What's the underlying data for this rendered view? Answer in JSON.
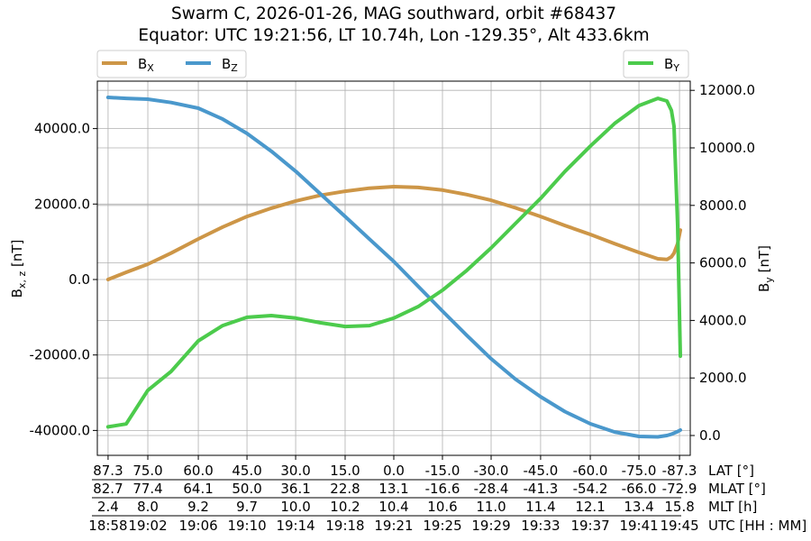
{
  "chart_data": {
    "type": "line",
    "title": "Swarm C, 2026-01-26, MAG southward, orbit #68437",
    "subtitle": "Equator: UTC 19:21:56, LT 10.74h, Lon -129.35°, Alt 433.6km",
    "ylabel_left": "B_{x,z} [nT]",
    "ylabel_right": "B_y [nT]",
    "xlim": [
      "18:57:34",
      "19:46:18"
    ],
    "ylim_left": [
      -46600,
      52570
    ],
    "ylim_right": [
      -690,
      12320
    ],
    "yticks_left": [
      -40000,
      -20000,
      0,
      20000,
      40000
    ],
    "ytick_labels_left": [
      "-40000.0",
      "-20000.0",
      "0.0",
      "20000.0",
      "40000.0"
    ],
    "yticks_right": [
      0,
      2000,
      4000,
      6000,
      8000,
      10000,
      12000
    ],
    "ytick_labels_right": [
      "0.0",
      "2000.0",
      "4000.0",
      "6000.0",
      "8000.0",
      "10000.0",
      "12000.0"
    ],
    "grid": true,
    "xtick_rows": [
      {
        "label": "LAT [°]",
        "values": [
          "87.3",
          "75.0",
          "60.0",
          "45.0",
          "30.0",
          "15.0",
          "0.0",
          "-15.0",
          "-30.0",
          "-45.0",
          "-60.0",
          "-75.0",
          "-87.3"
        ]
      },
      {
        "label": "MLAT [°]",
        "values": [
          "82.7",
          "77.4",
          "64.1",
          "50.0",
          "36.1",
          "22.8",
          "13.1",
          "-16.6",
          "-28.4",
          "-41.3",
          "-54.2",
          "-66.0",
          "-72.9"
        ]
      },
      {
        "label": "MLT [h]",
        "values": [
          "2.4",
          "8.0",
          "9.2",
          "9.7",
          "10.0",
          "10.2",
          "10.4",
          "10.6",
          "11.0",
          "11.4",
          "12.1",
          "13.4",
          "15.8"
        ]
      },
      {
        "label": "UTC [HH : MM]",
        "values": [
          "18:58",
          "19:02",
          "19:06",
          "19:10",
          "19:14",
          "19:18",
          "19:21",
          "19:25",
          "19:29",
          "19:33",
          "19:37",
          "19:41",
          "19:45"
        ]
      }
    ],
    "xtick_times": [
      "18:58:27",
      "19:01:43",
      "19:05:52",
      "19:09:52",
      "19:13:52",
      "19:17:56",
      "19:21:56",
      "19:25:56",
      "19:29:56",
      "19:34:00",
      "19:38:05",
      "19:42:05",
      "19:45:25"
    ],
    "x": [
      "18:58:27",
      "18:59:56",
      "19:01:43",
      "19:03:38",
      "19:05:52",
      "19:07:52",
      "19:09:52",
      "19:11:52",
      "19:13:52",
      "19:15:52",
      "19:17:56",
      "19:19:56",
      "19:21:56",
      "19:23:56",
      "19:25:56",
      "19:27:56",
      "19:29:56",
      "19:31:56",
      "19:34:00",
      "19:36:00",
      "19:38:05",
      "19:40:05",
      "19:42:05",
      "19:43:38",
      "19:44:23",
      "19:44:45",
      "19:44:58",
      "19:45:16",
      "19:45:29"
    ],
    "series": [
      {
        "name": "B_X",
        "axis": "left",
        "color": "#cd9647",
        "values": [
          0,
          1900,
          4060,
          7000,
          10750,
          13900,
          16700,
          18900,
          20800,
          22300,
          23400,
          24200,
          24600,
          24400,
          23700,
          22500,
          21000,
          19000,
          16700,
          14300,
          11950,
          9500,
          7170,
          5500,
          5300,
          6000,
          7000,
          9500,
          13100
        ]
      },
      {
        "name": "B_Z",
        "axis": "left",
        "color": "#4a98cc",
        "values": [
          48270,
          48000,
          47800,
          46900,
          45400,
          42500,
          38700,
          34000,
          28700,
          22800,
          16700,
          10700,
          4780,
          -1800,
          -8360,
          -14800,
          -21000,
          -26400,
          -31060,
          -35000,
          -38230,
          -40400,
          -41580,
          -41700,
          -41340,
          -41000,
          -40700,
          -40300,
          -39900
        ]
      },
      {
        "name": "B_Y",
        "axis": "right",
        "color": "#4ccb4c",
        "values": [
          300,
          400,
          1570,
          2230,
          3290,
          3820,
          4110,
          4170,
          4080,
          3920,
          3790,
          3820,
          4080,
          4480,
          5050,
          5740,
          6520,
          7370,
          8240,
          9180,
          10060,
          10850,
          11470,
          11720,
          11630,
          11300,
          10750,
          7300,
          2760
        ]
      }
    ],
    "legend": [
      {
        "placement": "top-left",
        "entries": [
          "B_X",
          "B_Z"
        ]
      },
      {
        "placement": "top-right",
        "entries": [
          "B_Y"
        ]
      }
    ]
  }
}
